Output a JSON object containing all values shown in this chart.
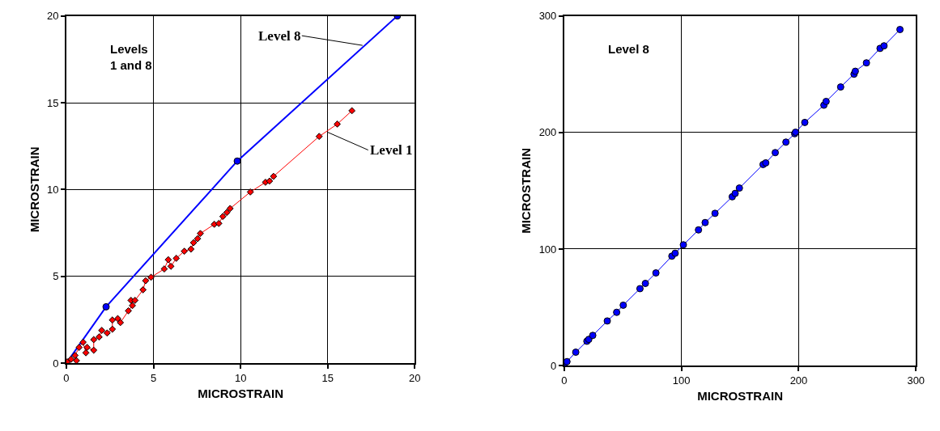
{
  "chart_data": [
    {
      "type": "line",
      "xlabel": "MICROSTRAIN",
      "ylabel": "MICROSTRAIN",
      "xlim": [
        0,
        20
      ],
      "ylim": [
        0,
        20
      ],
      "xticks": [
        0,
        5,
        10,
        15,
        20
      ],
      "yticks": [
        0,
        5,
        10,
        15,
        20
      ],
      "grid": true,
      "annotations": [
        "Levels\n1 and 8",
        {
          "text": "Level 8",
          "x": 17.0,
          "y": 18.3
        },
        {
          "text": "Level 1",
          "x": 15.0,
          "y": 13.3
        }
      ],
      "series": [
        {
          "color": "#0000ff",
          "marker": "circle",
          "x": [
            0,
            2.28,
            9.81,
            19.0
          ],
          "values": [
            0,
            3.25,
            11.64,
            20.0
          ]
        },
        {
          "color": "#ff0000",
          "marker": "diamond",
          "x": [
            0.05,
            0.27,
            0.58,
            0.5,
            0.73,
            0.96,
            1.12,
            1.19,
            1.57,
            1.57,
            1.88,
            2.03,
            2.34,
            2.64,
            2.64,
            2.95,
            3.1,
            3.56,
            3.79,
            3.71,
            3.94,
            4.4,
            4.55,
            4.86,
            5.62,
            5.85,
            6.0,
            6.31,
            6.77,
            7.15,
            7.3,
            7.53,
            7.69,
            8.49,
            8.75,
            8.98,
            9.21,
            9.4,
            10.56,
            11.43,
            11.66,
            11.89,
            14.51,
            15.55,
            16.39
          ],
          "values": [
            0.08,
            0.23,
            0.15,
            0.45,
            0.91,
            1.21,
            0.6,
            0.91,
            0.75,
            1.36,
            1.51,
            1.89,
            1.74,
            1.96,
            2.49,
            2.57,
            2.34,
            3.02,
            3.32,
            3.62,
            3.62,
            4.23,
            4.75,
            4.95,
            5.43,
            5.96,
            5.58,
            6.04,
            6.45,
            6.57,
            6.94,
            7.17,
            7.47,
            8.0,
            8.05,
            8.45,
            8.68,
            8.91,
            9.86,
            10.42,
            10.49,
            10.76,
            13.06,
            13.77,
            14.54
          ]
        }
      ]
    },
    {
      "type": "line",
      "xlabel": "MICROSTRAIN",
      "ylabel": "MICROSTRAIN",
      "xlim": [
        0,
        300
      ],
      "ylim": [
        0,
        300
      ],
      "xticks": [
        0,
        100,
        200,
        300
      ],
      "yticks": [
        0,
        100,
        200,
        300
      ],
      "grid": true,
      "annotations": [
        "Level 8"
      ],
      "series": [
        {
          "color": "#0000ff",
          "marker": "circle",
          "x": [
            0,
            2.3,
            9.8,
            19.3,
            20.9,
            24.3,
            36.7,
            44.7,
            50.3,
            64.6,
            69.2,
            78.2,
            91.8,
            94.6,
            101.6,
            114.5,
            120.2,
            128.6,
            143.3,
            145.8,
            149.4,
            169.6,
            171.9,
            180.0,
            189.1,
            196.6,
            197.3,
            205.2,
            221.5,
            223.4,
            235.8,
            247.2,
            248.3,
            257.8,
            269.4,
            272.8,
            286.4
          ],
          "values": [
            0,
            3.4,
            11.5,
            20.9,
            22.5,
            25.9,
            38.3,
            45.7,
            51.8,
            66.0,
            70.5,
            79.5,
            93.9,
            96.4,
            103.6,
            116.4,
            122.7,
            130.6,
            144.8,
            147.7,
            152.3,
            172.5,
            173.9,
            182.7,
            191.7,
            198.9,
            200.2,
            208.6,
            223.4,
            226.6,
            239.0,
            250.0,
            252.5,
            259.7,
            272.1,
            274.3,
            288.3
          ]
        }
      ]
    }
  ]
}
